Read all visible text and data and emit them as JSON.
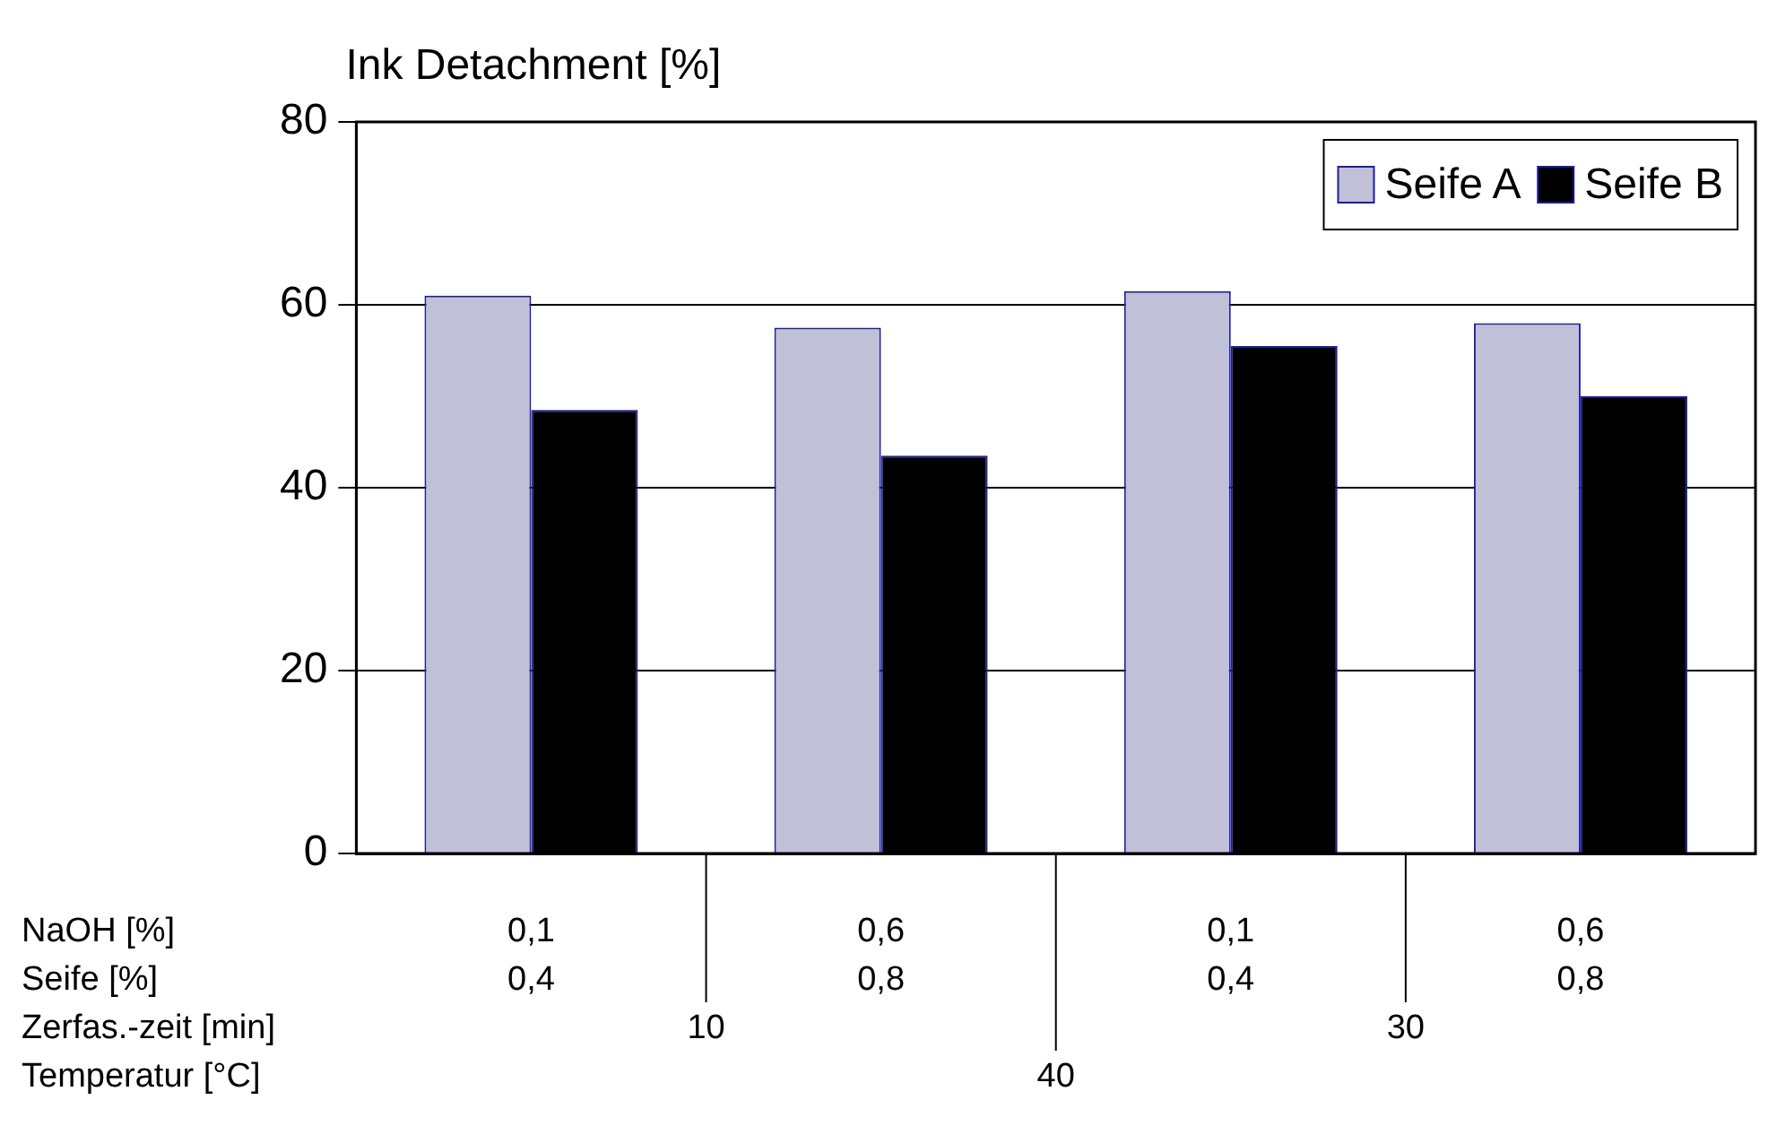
{
  "chart_data": {
    "type": "bar",
    "title": "Ink Detachment [%]",
    "categories": [
      "0,1\n0,4",
      "0,6\n0,8",
      "0,1\n0,4",
      "0,6\n0,8"
    ],
    "series": [
      {
        "name": "Seife A",
        "color": "#c0c0d6",
        "values": [
          61,
          57.5,
          61.5,
          58
        ]
      },
      {
        "name": "Seife B",
        "color": "#000000",
        "values": [
          48.5,
          43.5,
          55.5,
          50
        ]
      }
    ],
    "annotations": [
      "NaOH [%]",
      "Seife [%]",
      "Zerfas.-zeit [min]",
      "Temperatur [°C]",
      "10",
      "30",
      "40"
    ],
    "ylim": [
      0,
      80
    ],
    "yticks": [
      0,
      20,
      40,
      60,
      80
    ],
    "grid": "y",
    "legend": "top right"
  }
}
